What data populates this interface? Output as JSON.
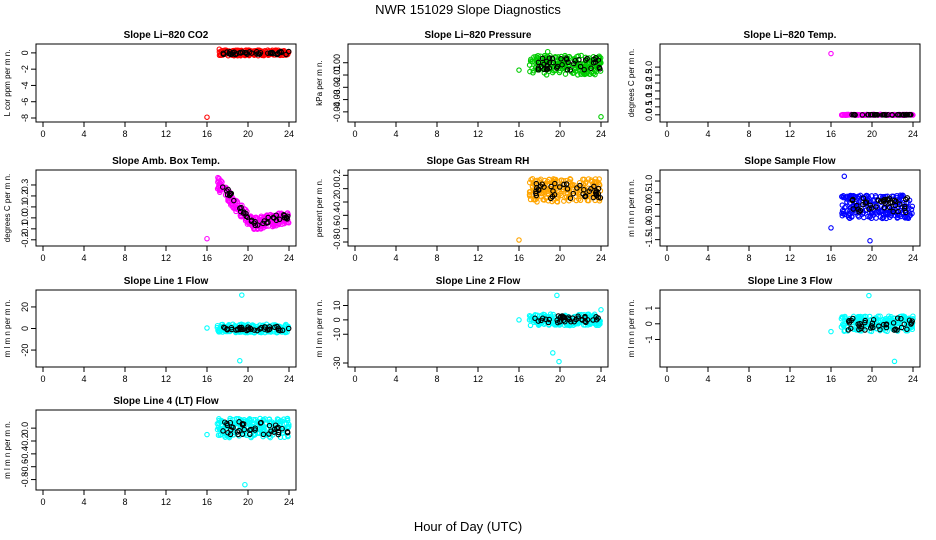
{
  "figure": {
    "title": "NWR  151029  Slope Diagnostics",
    "xlabel": "Hour of Day (UTC)"
  },
  "colors": {
    "red": "#ff0000",
    "green": "#00cc00",
    "magenta": "#ff00ff",
    "orange": "#ffa500",
    "blue": "#0000ff",
    "cyan": "#00ffff",
    "black": "#000000"
  },
  "chart_data": [
    {
      "type": "scatter",
      "title": "Slope Li−820 CO2",
      "ylabel": "L cor ppm per m n.",
      "xlim": [
        0,
        24
      ],
      "xticks": [
        "0",
        "4",
        "8",
        "12",
        "16",
        "20",
        "24"
      ],
      "ylim": [
        -8,
        0.6
      ],
      "yticks": [
        0,
        -2,
        -4,
        -6,
        -8
      ],
      "ytick_labels": [
        "0",
        "-2",
        "-4",
        "-6",
        "-8"
      ],
      "color": "red",
      "dense_x": [
        17.2,
        24
      ],
      "dense_y": [
        -0.35,
        0.35
      ],
      "black_x": [
        17.5,
        24
      ],
      "black_y": [
        -0.2,
        0.2
      ],
      "outliers": [
        {
          "x": 16.0,
          "y": -7.9
        },
        {
          "x": 17.2,
          "y": 0.45
        }
      ]
    },
    {
      "type": "scatter",
      "title": "Slope Li−820 Pressure",
      "ylabel": "kPa per m n.",
      "xlim": [
        0,
        24
      ],
      "xticks": [
        "0",
        "4",
        "8",
        "12",
        "16",
        "20",
        "24"
      ],
      "ylim": [
        -0.045,
        0.012
      ],
      "yticks": [
        0,
        -0.01,
        -0.02,
        -0.03,
        -0.04
      ],
      "ytick_labels": [
        "0.00",
        "-0.01",
        "-0.02",
        "-0.03",
        "-0.04"
      ],
      "color": "green",
      "dense_x": [
        17.0,
        24
      ],
      "dense_y": [
        -0.01,
        0.006
      ],
      "black_x": [
        17.5,
        24
      ],
      "black_y": [
        -0.006,
        0.004
      ],
      "outliers": [
        {
          "x": 16.0,
          "y": -0.006
        },
        {
          "x": 24.0,
          "y": -0.044
        },
        {
          "x": 18.8,
          "y": 0.009
        }
      ]
    },
    {
      "type": "scatter",
      "title": "Slope Li−820 Temp.",
      "ylabel": "degrees C per m n.",
      "xlim": [
        0,
        24
      ],
      "xticks": [
        "0",
        "4",
        "8",
        "12",
        "16",
        "20",
        "24"
      ],
      "ylim": [
        -0.2,
        4.2
      ],
      "yticks": [
        0,
        0.5,
        1.0,
        1.5,
        2.0,
        2.5,
        3.0
      ],
      "ytick_labels": [
        "0.0",
        "0.5",
        "1.0",
        "1.5",
        "2.0",
        "2.5",
        "3.0"
      ],
      "color": "magenta",
      "dense_x": [
        17.0,
        24
      ],
      "dense_y": [
        -0.02,
        0.02
      ],
      "black_x": [
        18.0,
        24
      ],
      "black_y": [
        -0.01,
        0.01
      ],
      "outliers": [
        {
          "x": 16.0,
          "y": 3.85
        }
      ]
    },
    {
      "type": "scatter",
      "title": "Slope Amb. Box Temp.",
      "ylabel": "degrees C per m n.",
      "xlim": [
        0,
        24
      ],
      "xticks": [
        "0",
        "4",
        "8",
        "12",
        "16",
        "20",
        "24"
      ],
      "ylim": [
        -0.22,
        0.4
      ],
      "yticks": [
        -0.2,
        -0.1,
        0.0,
        0.1,
        0.2,
        0.3
      ],
      "ytick_labels": [
        "-0.2",
        "-0.1",
        "0.0",
        "0.1",
        "0.2",
        "0.3"
      ],
      "color": "magenta",
      "curve": true,
      "outliers": [
        {
          "x": 16.0,
          "y": -0.19
        }
      ]
    },
    {
      "type": "scatter",
      "title": "Slope Gas Stream RH",
      "ylabel": "percent per m n.",
      "xlim": [
        0,
        24
      ],
      "xticks": [
        "0",
        "4",
        "8",
        "12",
        "16",
        "20",
        "24"
      ],
      "ylim": [
        -0.8,
        0.22
      ],
      "yticks": [
        0.2,
        0.0,
        -0.2,
        -0.4,
        -0.6,
        -0.8
      ],
      "ytick_labels": [
        "0.2",
        "0.0",
        "-0.2",
        "-0.4",
        "-0.6",
        "-0.8"
      ],
      "color": "orange",
      "dense_x": [
        17.0,
        24
      ],
      "dense_y": [
        -0.2,
        0.15
      ],
      "black_x": [
        17.5,
        24
      ],
      "black_y": [
        -0.15,
        0.1
      ],
      "outliers": [
        {
          "x": 16.0,
          "y": -0.77
        }
      ]
    },
    {
      "type": "scatter",
      "title": "Slope Sample Flow",
      "ylabel": "m l m n per m n.",
      "xlim": [
        0,
        24
      ],
      "xticks": [
        "0",
        "4",
        "8",
        "12",
        "16",
        "20",
        "24"
      ],
      "ylim": [
        -1.6,
        1.3
      ],
      "yticks": [
        1.0,
        0.5,
        0.0,
        -0.5,
        -1.0,
        -1.5
      ],
      "ytick_labels": [
        "1.0",
        "0.5",
        "0.0",
        "-0.5",
        "-1.0",
        "-1.5"
      ],
      "color": "blue",
      "dense_x": [
        17.0,
        24
      ],
      "dense_y": [
        -0.6,
        0.4
      ],
      "black_x": [
        17.5,
        24
      ],
      "black_y": [
        -0.35,
        0.3
      ],
      "outliers": [
        {
          "x": 16.0,
          "y": -1.0
        },
        {
          "x": 17.3,
          "y": 1.2
        },
        {
          "x": 19.8,
          "y": -1.55
        }
      ]
    },
    {
      "type": "scatter",
      "title": "Slope Line 1 Flow",
      "ylabel": "m l m n per m n.",
      "xlim": [
        0,
        24
      ],
      "xticks": [
        "0",
        "4",
        "8",
        "12",
        "16",
        "20",
        "24"
      ],
      "ylim": [
        -32,
        32
      ],
      "yticks": [
        20,
        0,
        -20
      ],
      "ytick_labels": [
        "20",
        "0",
        "-20"
      ],
      "color": "cyan",
      "dense_x": [
        17.0,
        24
      ],
      "dense_y": [
        -4,
        4
      ],
      "black_x": [
        17.5,
        24
      ],
      "black_y": [
        -2,
        2
      ],
      "outliers": [
        {
          "x": 16.0,
          "y": 0.5
        },
        {
          "x": 19.4,
          "y": 31
        },
        {
          "x": 19.2,
          "y": -30
        }
      ]
    },
    {
      "type": "scatter",
      "title": "Slope Line 2 Flow",
      "ylabel": "m l m n per m n.",
      "xlim": [
        0,
        24
      ],
      "xticks": [
        "0",
        "4",
        "8",
        "12",
        "16",
        "20",
        "24"
      ],
      "ylim": [
        -30,
        18
      ],
      "yticks": [
        10,
        0,
        -10,
        -30
      ],
      "ytick_labels": [
        "10",
        "0",
        "-10",
        "-30"
      ],
      "color": "cyan",
      "dense_x": [
        17.0,
        24
      ],
      "dense_y": [
        -4,
        4
      ],
      "black_x": [
        17.5,
        24
      ],
      "black_y": [
        -2,
        3
      ],
      "outliers": [
        {
          "x": 16.0,
          "y": 0
        },
        {
          "x": 19.7,
          "y": 17
        },
        {
          "x": 19.3,
          "y": -23
        },
        {
          "x": 19.9,
          "y": -29
        },
        {
          "x": 24.0,
          "y": 7
        }
      ]
    },
    {
      "type": "scatter",
      "title": "Slope Line 3 Flow",
      "ylabel": "m l m n per m n.",
      "xlim": [
        0,
        24
      ],
      "xticks": [
        "0",
        "4",
        "8",
        "12",
        "16",
        "20",
        "24"
      ],
      "ylim": [
        -2.5,
        1.9
      ],
      "yticks": [
        1,
        0,
        -1
      ],
      "ytick_labels": [
        "1",
        "0",
        "-1"
      ],
      "color": "cyan",
      "dense_x": [
        17.0,
        24
      ],
      "dense_y": [
        -0.5,
        0.5
      ],
      "black_x": [
        17.5,
        24
      ],
      "black_y": [
        -0.4,
        0.4
      ],
      "outliers": [
        {
          "x": 16.0,
          "y": -0.5
        },
        {
          "x": 19.7,
          "y": 1.8
        },
        {
          "x": 22.2,
          "y": -2.4
        }
      ]
    },
    {
      "type": "scatter",
      "title": "Slope Line 4 (LT) Flow",
      "ylabel": "m l m n per m n.",
      "xlim": [
        0,
        24
      ],
      "xticks": [
        "0",
        "4",
        "8",
        "12",
        "16",
        "20",
        "24"
      ],
      "ylim": [
        -0.9,
        0.22
      ],
      "yticks": [
        0.0,
        -0.2,
        -0.4,
        -0.6,
        -0.8
      ],
      "ytick_labels": [
        "0.0",
        "-0.2",
        "-0.4",
        "-0.6",
        "-0.8"
      ],
      "color": "cyan",
      "dense_x": [
        17.0,
        24
      ],
      "dense_y": [
        -0.15,
        0.15
      ],
      "black_x": [
        17.5,
        24
      ],
      "black_y": [
        -0.1,
        0.1
      ],
      "outliers": [
        {
          "x": 16.0,
          "y": -0.1
        },
        {
          "x": 19.7,
          "y": -0.88
        }
      ]
    }
  ]
}
